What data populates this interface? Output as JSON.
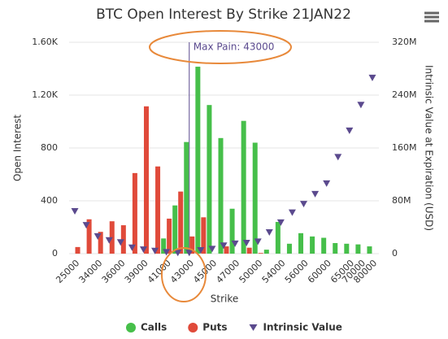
{
  "chart_data": {
    "type": "bar",
    "title": "BTC Open Interest By Strike 21JAN22",
    "x_label": "Strike",
    "y_label": "Open Interest",
    "y2_label": "Intrinsic Value at Expiration (USD)",
    "categories": [
      "25000",
      null,
      "34000",
      null,
      "36000",
      null,
      "39000",
      null,
      "41000",
      null,
      "43000",
      null,
      "45000",
      null,
      "47000",
      null,
      "50000",
      null,
      "54000",
      null,
      "56000",
      null,
      "60000",
      null,
      "65000",
      "70000",
      "80000"
    ],
    "series": [
      {
        "name": "Calls",
        "type": "column",
        "color": "#46bf4a",
        "values": [
          0,
          0,
          0,
          0,
          0,
          0,
          0,
          0,
          115,
          365,
          845,
          1415,
          1125,
          875,
          340,
          1005,
          840,
          30,
          240,
          75,
          155,
          130,
          120,
          80,
          75,
          70,
          55
        ]
      },
      {
        "name": "Puts",
        "type": "column",
        "color": "#e04a3a",
        "values": [
          50,
          260,
          165,
          245,
          215,
          610,
          1115,
          660,
          265,
          470,
          130,
          275,
          0,
          55,
          0,
          45,
          5,
          0,
          0,
          0,
          0,
          0,
          0,
          0,
          0,
          0,
          0
        ]
      },
      {
        "name": "Intrinsic Value",
        "type": "scatter",
        "axis": "y2",
        "color": "#5b4a8e",
        "values": [
          64,
          43,
          26,
          20,
          17,
          9,
          6,
          4,
          2,
          1,
          1,
          5,
          7,
          12,
          15,
          16,
          18,
          32,
          47,
          62,
          75,
          90,
          106,
          146,
          186,
          225,
          266
        ]
      }
    ],
    "ylim": [
      0,
      1600
    ],
    "yticks": [
      0,
      400,
      800,
      {
        "value": 1200,
        "label": "1.20K"
      },
      {
        "value": 1600,
        "label": "1.60K"
      }
    ],
    "y2lim": [
      0,
      320
    ],
    "y2ticks": [
      0,
      {
        "value": 80,
        "label": "80M"
      },
      {
        "value": 160,
        "label": "160M"
      },
      {
        "value": 240,
        "label": "240M"
      },
      {
        "value": 320,
        "label": "320M"
      }
    ],
    "grid": true,
    "legend": "bottom",
    "annotation": {
      "text": "Max Pain: 43000",
      "x": "43000",
      "color": "#5b4a8e"
    }
  }
}
